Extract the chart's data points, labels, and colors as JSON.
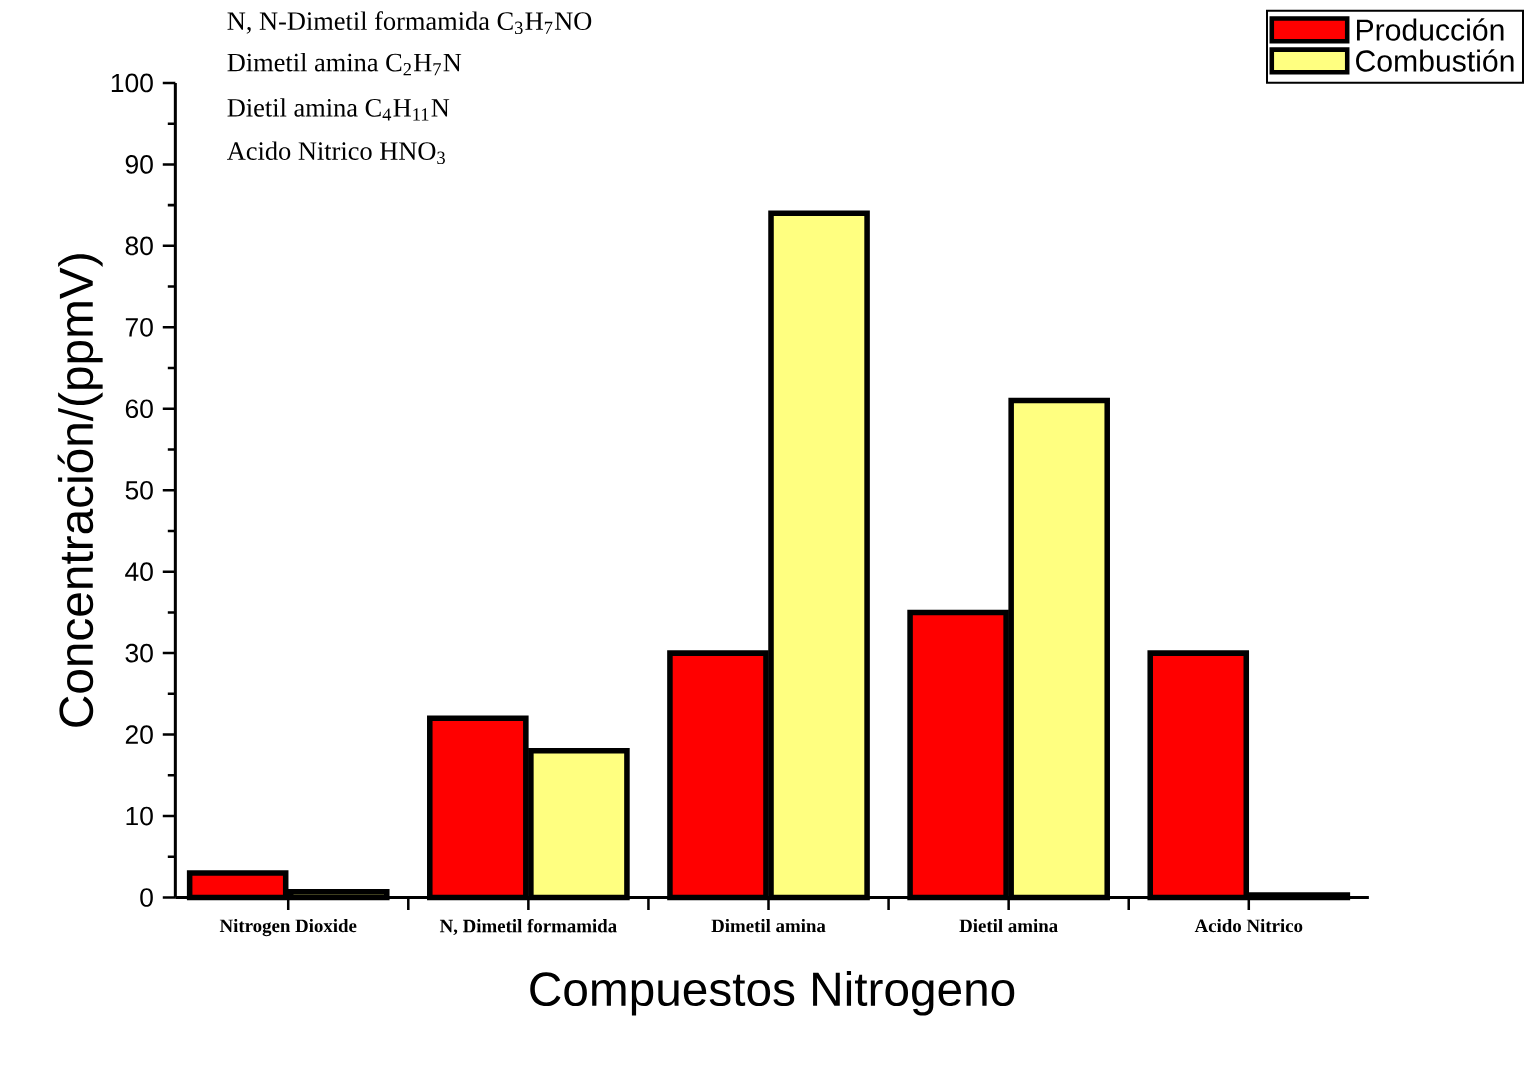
{
  "chart_data": {
    "type": "bar",
    "xlabel": "Compuestos Nitrogeno",
    "ylabel": "Concentración/(ppmV)",
    "categories": [
      "Nitrogen Dioxide",
      "N, Dimetil formamida",
      "Dimetil amina",
      "Dietil amina",
      "Acido Nitrico"
    ],
    "series": [
      {
        "name": "Producción",
        "color": "#ff0000",
        "values": [
          3,
          22,
          30,
          35,
          30
        ]
      },
      {
        "name": "Combustión",
        "color": "#ffff80",
        "values": [
          0.7,
          18,
          84,
          61,
          0.3
        ]
      }
    ],
    "ylim": [
      0,
      100
    ],
    "yticks": [
      0,
      10,
      20,
      30,
      40,
      50,
      60,
      70,
      80,
      90,
      100
    ],
    "legend": "top right",
    "grid": false,
    "annotations": [
      "N, N-Dimetil formamida C$_{3}$H$_{7}$NO",
      "Dimetil amina C$_{2}$H$_{7}$N",
      "Dietil amina C$_{4}$H$_{11}$N",
      "Acido Nitrico HNO$_{3}$"
    ]
  }
}
